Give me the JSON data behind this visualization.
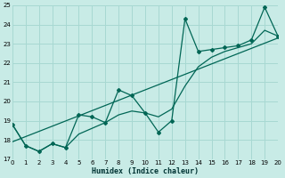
{
  "xlabel": "Humidex (Indice chaleur)",
  "bg_color": "#c8ebe6",
  "grid_color": "#a8d8d2",
  "line_color": "#006655",
  "xlim": [
    0,
    20
  ],
  "ylim": [
    17,
    25
  ],
  "xticks": [
    0,
    1,
    2,
    3,
    4,
    5,
    6,
    7,
    8,
    9,
    10,
    11,
    12,
    13,
    14,
    15,
    16,
    17,
    18,
    19,
    20
  ],
  "yticks": [
    17,
    18,
    19,
    20,
    21,
    22,
    23,
    24,
    25
  ],
  "data_x": [
    0,
    1,
    2,
    3,
    4,
    5,
    6,
    7,
    8,
    9,
    10,
    11,
    12,
    13,
    14,
    15,
    16,
    17,
    18,
    19,
    20
  ],
  "data_y": [
    18.8,
    17.7,
    17.4,
    17.8,
    17.6,
    19.3,
    19.2,
    18.9,
    20.6,
    20.3,
    19.4,
    18.4,
    19.0,
    24.3,
    22.6,
    22.7,
    22.8,
    22.9,
    23.2,
    24.9,
    23.4
  ],
  "trend_x": [
    0,
    20
  ],
  "trend_y": [
    17.9,
    23.3
  ],
  "smooth_x": [
    0,
    1,
    2,
    3,
    4,
    5,
    6,
    7,
    8,
    9,
    10,
    11,
    12,
    13,
    14,
    15,
    16,
    17,
    18,
    19,
    20
  ],
  "smooth_y": [
    18.8,
    17.7,
    17.4,
    17.8,
    17.6,
    18.3,
    18.6,
    18.9,
    19.3,
    19.5,
    19.4,
    19.2,
    19.6,
    20.8,
    21.8,
    22.3,
    22.6,
    22.8,
    23.0,
    23.7,
    23.4
  ]
}
